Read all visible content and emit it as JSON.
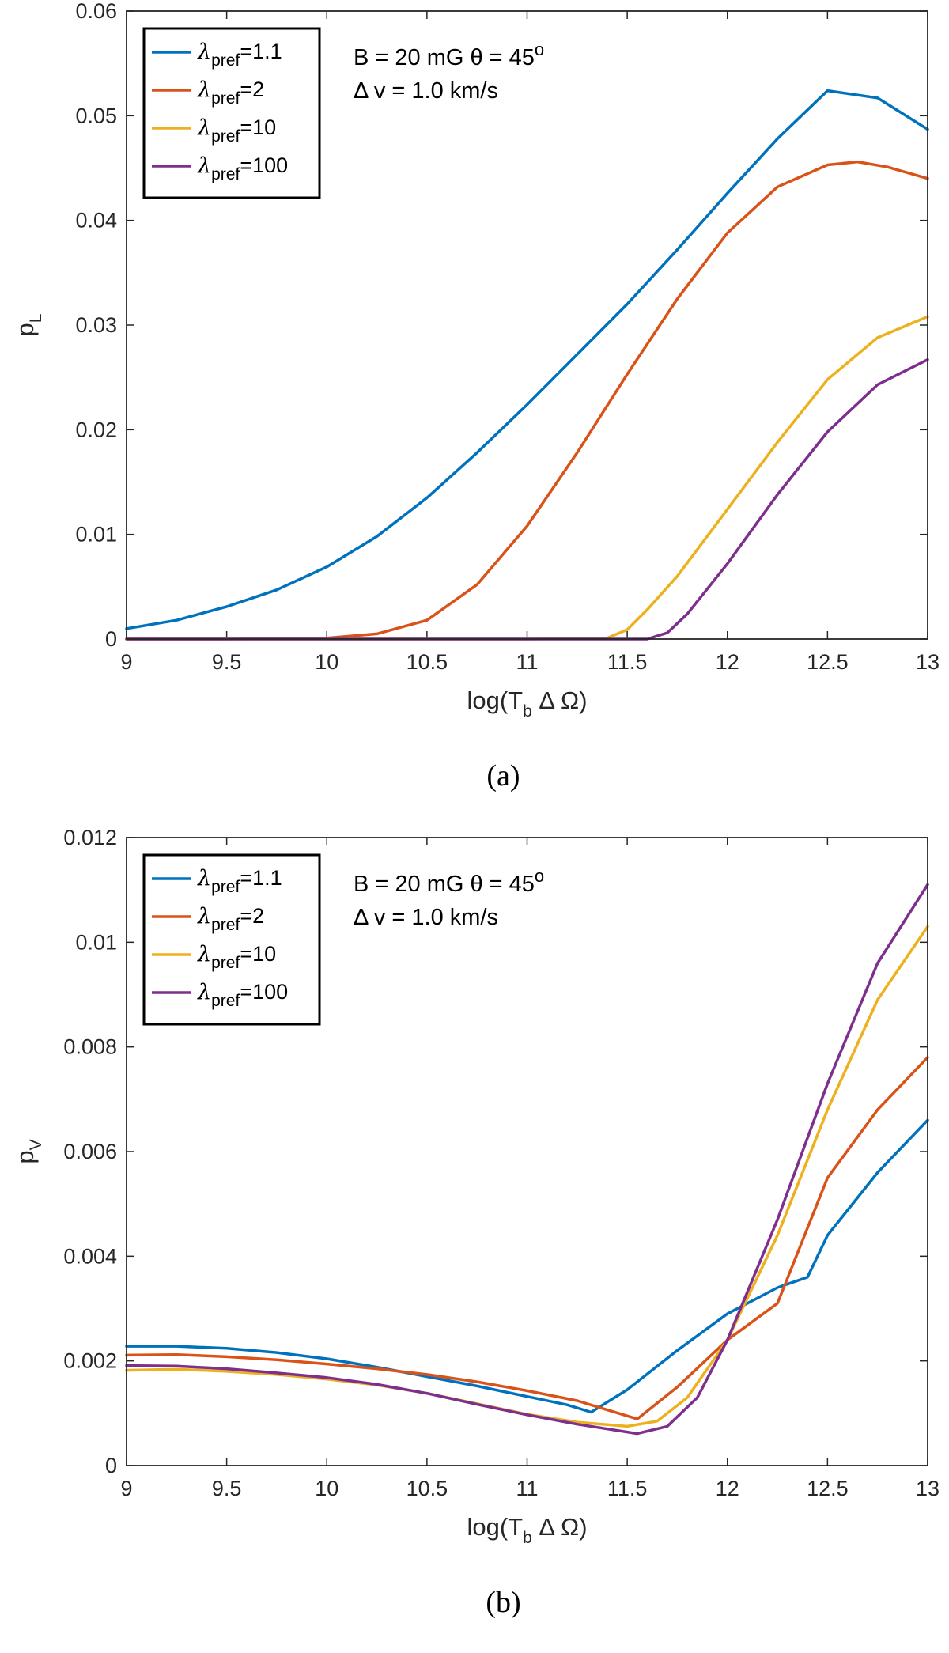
{
  "chart_data": [
    {
      "type": "line",
      "panel": "a",
      "caption": "(a)",
      "xlabel": "log(T_b Δ Ω)",
      "xlabel_parts": {
        "pre": "log(T",
        "sub": "b",
        "post": " Δ Ω)"
      },
      "ylabel": "p_L",
      "ylabel_parts": {
        "main": "p",
        "sub": "L"
      },
      "xlim": [
        9,
        13
      ],
      "ylim": [
        0,
        0.06
      ],
      "xticks": [
        "9",
        "9.5",
        "10",
        "10.5",
        "11",
        "11.5",
        "12",
        "12.5",
        "13"
      ],
      "yticks": [
        "0",
        "0.01",
        "0.02",
        "0.03",
        "0.04",
        "0.05",
        "0.06"
      ],
      "annotation": {
        "line1": "B = 20 mG  θ = 45",
        "line1_sup": "o",
        "line2": "Δ v = 1.0 km/s"
      },
      "legend_location": "top-left",
      "series": [
        {
          "name": "λ_pref=1.1",
          "label_value": "=1.1",
          "color": "#0072BD",
          "x": [
            9,
            9.25,
            9.5,
            9.75,
            10,
            10.25,
            10.5,
            10.75,
            11,
            11.25,
            11.5,
            11.75,
            12,
            12.25,
            12.5,
            12.75,
            13
          ],
          "y": [
            0.001,
            0.0018,
            0.0031,
            0.0047,
            0.0069,
            0.0098,
            0.0135,
            0.0178,
            0.0224,
            0.0272,
            0.032,
            0.0372,
            0.0426,
            0.0478,
            0.0524,
            0.0517,
            0.0487
          ]
        },
        {
          "name": "λ_pref=2",
          "label_value": "=2",
          "color": "#D95319",
          "x": [
            9,
            9.5,
            10,
            10.25,
            10.5,
            10.75,
            11,
            11.25,
            11.5,
            11.75,
            12,
            12.25,
            12.5,
            12.65,
            12.8,
            13
          ],
          "y": [
            0,
            0,
            0.0001,
            0.0005,
            0.0018,
            0.0052,
            0.0108,
            0.0178,
            0.0253,
            0.0325,
            0.0388,
            0.0432,
            0.0453,
            0.0456,
            0.0451,
            0.044
          ]
        },
        {
          "name": "λ_pref=10",
          "label_value": "=10",
          "color": "#EDB120",
          "x": [
            9,
            10,
            11,
            11.4,
            11.5,
            11.6,
            11.75,
            12,
            12.25,
            12.5,
            12.75,
            13
          ],
          "y": [
            0,
            0,
            0,
            0.0001,
            0.0009,
            0.0028,
            0.006,
            0.0124,
            0.0188,
            0.0248,
            0.0288,
            0.0308
          ]
        },
        {
          "name": "λ_pref=100",
          "label_value": "=100",
          "color": "#7E2F8E",
          "x": [
            9,
            10,
            11,
            11.6,
            11.7,
            11.8,
            12,
            12.25,
            12.5,
            12.75,
            13
          ],
          "y": [
            0,
            0,
            0,
            0,
            0.0006,
            0.0024,
            0.0072,
            0.0138,
            0.0198,
            0.0243,
            0.0267
          ]
        }
      ]
    },
    {
      "type": "line",
      "panel": "b",
      "caption": "(b)",
      "xlabel": "log(T_b Δ Ω)",
      "xlabel_parts": {
        "pre": "log(T",
        "sub": "b",
        "post": " Δ Ω)"
      },
      "ylabel": "p_V",
      "ylabel_parts": {
        "main": "p",
        "sub": "V"
      },
      "xlim": [
        9,
        13
      ],
      "ylim": [
        0,
        0.012
      ],
      "xticks": [
        "9",
        "9.5",
        "10",
        "10.5",
        "11",
        "11.5",
        "12",
        "12.5",
        "13"
      ],
      "yticks": [
        "0",
        "0.002",
        "0.004",
        "0.006",
        "0.008",
        "0.01",
        "0.012"
      ],
      "annotation": {
        "line1": "B = 20 mG  θ = 45",
        "line1_sup": "o",
        "line2": "Δ v = 1.0 km/s"
      },
      "legend_location": "top-left",
      "series": [
        {
          "name": "λ_pref=1.1",
          "label_value": "=1.1",
          "color": "#0072BD",
          "x": [
            9,
            9.25,
            9.5,
            9.75,
            10,
            10.25,
            10.5,
            10.75,
            11,
            11.2,
            11.32,
            11.5,
            11.75,
            12,
            12.25,
            12.4,
            12.5,
            12.75,
            13
          ],
          "y": [
            0.00228,
            0.00228,
            0.00224,
            0.00216,
            0.00204,
            0.00188,
            0.0017,
            0.00152,
            0.00132,
            0.00116,
            0.00102,
            0.00145,
            0.0022,
            0.0029,
            0.0034,
            0.0036,
            0.0044,
            0.0056,
            0.0066
          ]
        },
        {
          "name": "λ_pref=2",
          "label_value": "=2",
          "color": "#D95319",
          "x": [
            9,
            9.25,
            9.5,
            9.75,
            10,
            10.25,
            10.5,
            10.75,
            11,
            11.25,
            11.55,
            11.75,
            12,
            12.25,
            12.5,
            12.75,
            13
          ],
          "y": [
            0.00211,
            0.00212,
            0.00208,
            0.00202,
            0.00194,
            0.00185,
            0.00174,
            0.0016,
            0.00143,
            0.00124,
            0.00089,
            0.0015,
            0.0024,
            0.0031,
            0.0055,
            0.0068,
            0.0078
          ]
        },
        {
          "name": "λ_pref=10",
          "label_value": "=10",
          "color": "#EDB120",
          "x": [
            9,
            9.25,
            9.5,
            9.75,
            10,
            10.25,
            10.5,
            10.75,
            11,
            11.25,
            11.5,
            11.65,
            11.8,
            12,
            12.25,
            12.5,
            12.75,
            13
          ],
          "y": [
            0.00182,
            0.00184,
            0.0018,
            0.00174,
            0.00165,
            0.00154,
            0.00138,
            0.00118,
            0.00098,
            0.00083,
            0.00075,
            0.00085,
            0.0013,
            0.0024,
            0.0044,
            0.0068,
            0.0089,
            0.0103
          ]
        },
        {
          "name": "λ_pref=100",
          "label_value": "=100",
          "color": "#7E2F8E",
          "x": [
            9,
            9.25,
            9.5,
            9.75,
            10,
            10.25,
            10.5,
            10.75,
            11,
            11.25,
            11.55,
            11.7,
            11.85,
            12,
            12.25,
            12.5,
            12.75,
            13
          ],
          "y": [
            0.00191,
            0.0019,
            0.00185,
            0.00177,
            0.00168,
            0.00155,
            0.00138,
            0.00117,
            0.00097,
            0.00079,
            0.00061,
            0.00075,
            0.0013,
            0.0024,
            0.0047,
            0.0073,
            0.0096,
            0.0111
          ]
        }
      ]
    }
  ]
}
